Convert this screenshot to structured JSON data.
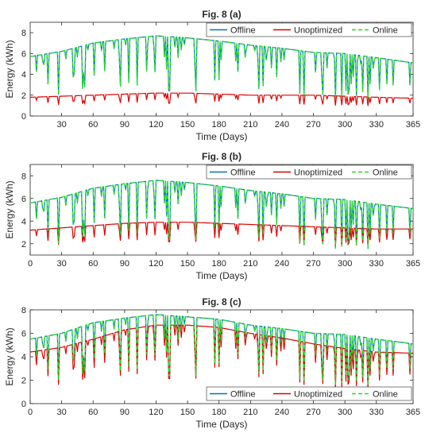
{
  "chart_data": [
    {
      "type": "line",
      "title": "Fig. 8 (a)",
      "xlabel": "Time (Days)",
      "ylabel": "Energy (kWh)",
      "xlim": [
        0,
        365
      ],
      "ylim": [
        0,
        9
      ],
      "xticks": [
        30,
        60,
        90,
        120,
        150,
        180,
        210,
        240,
        270,
        300,
        330,
        365
      ],
      "yticks": [
        0,
        2,
        4,
        6,
        8
      ],
      "legend_position": "top-right",
      "legend": [
        "Offline",
        "Unoptimized",
        "Online"
      ],
      "series": [
        {
          "name": "Offline",
          "color": "#0072BD",
          "style": "solid",
          "x": [
            0,
            30,
            60,
            90,
            120,
            150,
            180,
            210,
            240,
            270,
            300,
            330,
            365
          ],
          "values": [
            5.7,
            6.2,
            7.0,
            7.4,
            7.7,
            7.5,
            7.2,
            6.8,
            6.5,
            6.1,
            6.0,
            5.6,
            5.1
          ]
        },
        {
          "name": "Unoptimized",
          "color": "#E00000",
          "style": "solid",
          "x": [
            0,
            30,
            60,
            90,
            120,
            150,
            180,
            210,
            240,
            270,
            300,
            330,
            365
          ],
          "values": [
            1.8,
            1.9,
            2.0,
            2.1,
            2.2,
            2.2,
            2.1,
            2.0,
            2.0,
            2.0,
            1.9,
            1.8,
            1.7
          ]
        },
        {
          "name": "Online",
          "color": "#22DD22",
          "style": "dashed",
          "x": [
            0,
            30,
            60,
            90,
            120,
            150,
            180,
            210,
            240,
            270,
            300,
            330,
            365
          ],
          "values": [
            5.7,
            6.2,
            7.0,
            7.4,
            7.7,
            7.5,
            7.2,
            6.8,
            6.5,
            6.1,
            6.0,
            5.6,
            5.1
          ]
        }
      ]
    },
    {
      "type": "line",
      "title": "Fig. 8 (b)",
      "xlabel": "Time (Days)",
      "ylabel": "Energy (kWh)",
      "xlim": [
        0,
        365
      ],
      "ylim": [
        1,
        9
      ],
      "xticks": [
        0,
        30,
        60,
        90,
        120,
        150,
        180,
        210,
        240,
        270,
        300,
        330,
        365
      ],
      "yticks": [
        2,
        4,
        6,
        8
      ],
      "legend_position": "top-right",
      "legend": [
        "Offline",
        "Unoptimized",
        "Online"
      ],
      "series": [
        {
          "name": "Offline",
          "color": "#0072BD",
          "style": "solid",
          "x": [
            0,
            30,
            60,
            90,
            120,
            150,
            180,
            210,
            240,
            270,
            300,
            330,
            365
          ],
          "values": [
            5.6,
            6.1,
            6.9,
            7.3,
            7.6,
            7.4,
            7.1,
            6.7,
            6.4,
            6.0,
            5.9,
            5.5,
            5.1
          ]
        },
        {
          "name": "Unoptimized",
          "color": "#E00000",
          "style": "solid",
          "x": [
            0,
            30,
            60,
            90,
            120,
            150,
            180,
            210,
            240,
            270,
            300,
            330,
            365
          ],
          "values": [
            3.2,
            3.4,
            3.6,
            3.8,
            3.9,
            3.9,
            3.8,
            3.7,
            3.6,
            3.5,
            3.4,
            3.3,
            3.3
          ]
        },
        {
          "name": "Online",
          "color": "#22DD22",
          "style": "dashed",
          "x": [
            0,
            30,
            60,
            90,
            120,
            150,
            180,
            210,
            240,
            270,
            300,
            330,
            365
          ],
          "values": [
            5.6,
            6.1,
            6.9,
            7.3,
            7.6,
            7.4,
            7.1,
            6.7,
            6.4,
            6.0,
            5.9,
            5.5,
            5.1
          ]
        }
      ]
    },
    {
      "type": "line",
      "title": "Fig. 8 (c)",
      "xlabel": "Time (Days)",
      "ylabel": "Energy (kWh)",
      "xlim": [
        0,
        365
      ],
      "ylim": [
        0,
        8
      ],
      "xticks": [
        0,
        30,
        60,
        90,
        120,
        150,
        180,
        210,
        240,
        270,
        300,
        330,
        365
      ],
      "yticks": [
        0,
        2,
        4,
        6,
        8
      ],
      "legend_position": "bottom-right",
      "legend": [
        "Offline",
        "Unoptimized",
        "Online"
      ],
      "series": [
        {
          "name": "Offline",
          "color": "#0072BD",
          "style": "solid",
          "x": [
            0,
            30,
            60,
            90,
            120,
            150,
            180,
            210,
            240,
            270,
            300,
            330,
            365
          ],
          "values": [
            5.5,
            6.0,
            6.9,
            7.3,
            7.6,
            7.4,
            7.2,
            6.7,
            6.4,
            6.0,
            5.9,
            5.5,
            5.1
          ]
        },
        {
          "name": "Unoptimized",
          "color": "#E00000",
          "style": "solid",
          "x": [
            0,
            30,
            60,
            90,
            120,
            150,
            180,
            210,
            240,
            270,
            300,
            330,
            365
          ],
          "values": [
            4.4,
            4.8,
            5.5,
            6.3,
            6.7,
            6.7,
            6.5,
            6.0,
            5.6,
            5.1,
            4.7,
            4.4,
            4.3
          ]
        },
        {
          "name": "Online",
          "color": "#22DD22",
          "style": "dashed",
          "x": [
            0,
            30,
            60,
            90,
            120,
            150,
            180,
            210,
            240,
            270,
            300,
            330,
            365
          ],
          "values": [
            5.5,
            6.0,
            6.9,
            7.3,
            7.6,
            7.4,
            7.2,
            6.7,
            6.4,
            6.0,
            5.9,
            5.5,
            5.1
          ]
        }
      ]
    }
  ]
}
